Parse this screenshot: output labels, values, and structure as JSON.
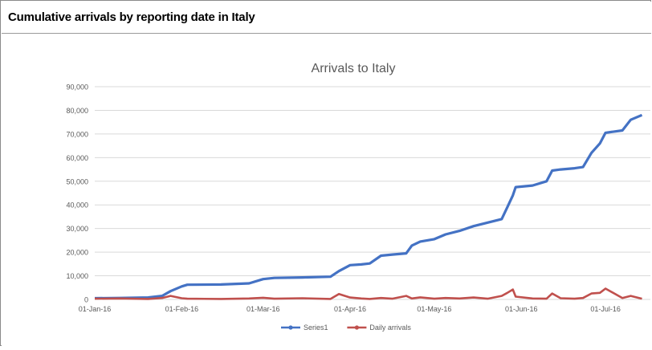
{
  "page": {
    "title": "Cumulative arrivals by reporting date in Italy"
  },
  "colors": {
    "series1": "#4472C4",
    "daily": "#C0504D",
    "grid": "#D9D9D9",
    "axis_text": "#595959",
    "title_text": "#595959"
  },
  "chart_data": {
    "type": "line",
    "title": "Arrivals to Italy",
    "xlabel": "",
    "ylabel": "",
    "ylim": [
      0,
      90000
    ],
    "yticks": [
      "0",
      "10,000",
      "20,000",
      "30,000",
      "40,000",
      "50,000",
      "60,000",
      "70,000",
      "80,000",
      "90,000"
    ],
    "xticks": [
      "01-Jan-16",
      "01-Feb-16",
      "01-Mar-16",
      "01-Apr-16",
      "01-May-16",
      "01-Jun-16",
      "01-Jul-16"
    ],
    "grid": true,
    "legend_position": "bottom",
    "x": [
      "01-Jan-16",
      "10-Jan-16",
      "20-Jan-16",
      "25-Jan-16",
      "28-Jan-16",
      "01-Feb-16",
      "03-Feb-16",
      "15-Feb-16",
      "25-Feb-16",
      "01-Mar-16",
      "05-Mar-16",
      "15-Mar-16",
      "25-Mar-16",
      "28-Mar-16",
      "01-Apr-16",
      "05-Apr-16",
      "08-Apr-16",
      "12-Apr-16",
      "16-Apr-16",
      "21-Apr-16",
      "23-Apr-16",
      "26-Apr-16",
      "01-May-16",
      "05-May-16",
      "10-May-16",
      "15-May-16",
      "20-May-16",
      "25-May-16",
      "27-May-16",
      "29-May-16",
      "30-May-16",
      "05-Jun-16",
      "10-Jun-16",
      "12-Jun-16",
      "15-Jun-16",
      "20-Jun-16",
      "23-Jun-16",
      "26-Jun-16",
      "29-Jun-16",
      "01-Jul-16",
      "07-Jul-16",
      "10-Jul-16",
      "14-Jul-16"
    ],
    "series": [
      {
        "name": "Series1",
        "values": [
          500,
          600,
          800,
          1500,
          3500,
          5500,
          6200,
          6300,
          6800,
          8600,
          9100,
          9300,
          9600,
          12000,
          14500,
          14800,
          15200,
          18500,
          19000,
          19500,
          22800,
          24500,
          25500,
          27500,
          29000,
          31000,
          32500,
          34000,
          39000,
          44000,
          47500,
          48200,
          50000,
          54500,
          55000,
          55500,
          56000,
          62000,
          66000,
          70500,
          71500,
          76000,
          78000
        ]
      },
      {
        "name": "Daily arrivals",
        "values": [
          300,
          400,
          200,
          600,
          1500,
          500,
          300,
          200,
          400,
          700,
          300,
          500,
          200,
          2300,
          800,
          400,
          200,
          600,
          300,
          1500,
          400,
          900,
          300,
          600,
          400,
          800,
          300,
          1500,
          2800,
          4200,
          1200,
          400,
          300,
          2500,
          500,
          300,
          600,
          2500,
          2800,
          4600,
          600,
          1500,
          300
        ]
      }
    ]
  }
}
